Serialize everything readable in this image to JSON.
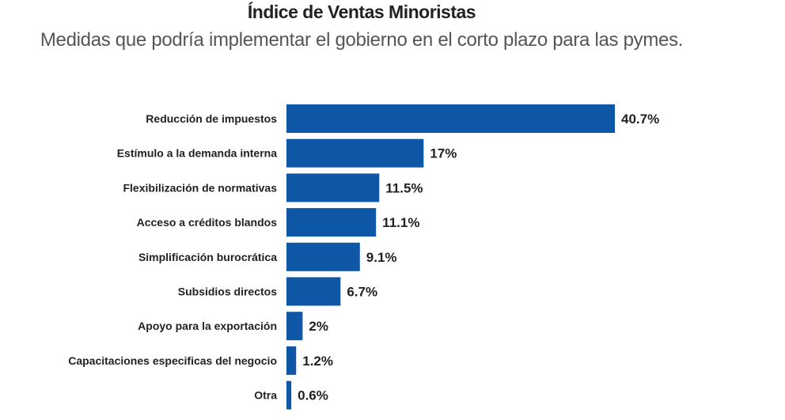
{
  "chart_data": {
    "type": "bar",
    "orientation": "horizontal",
    "title": "Índice de Ventas Minoristas",
    "subtitle": "Medidas que podría implementar el gobierno en el corto plazo para las pymes.",
    "categories": [
      "Reducción de impuestos",
      "Estímulo a la demanda interna",
      "Flexibilización de normativas",
      "Acceso a créditos blandos",
      "Simplificación burocrática",
      "Subsidios directos",
      "Apoyo para la exportación",
      "Capacitaciones especificas del negocio",
      "Otra"
    ],
    "values": [
      40.7,
      17,
      11.5,
      11.1,
      9.1,
      6.7,
      2,
      1.2,
      0.6
    ],
    "value_labels": [
      "40.7%",
      "17%",
      "11.5%",
      "11.1%",
      "9.1%",
      "6.7%",
      "2%",
      "1.2%",
      "0.6%"
    ],
    "xlabel": "",
    "ylabel": "",
    "xlim": [
      0,
      40.7
    ],
    "grid": false,
    "bar_color": "#0d57a6"
  }
}
